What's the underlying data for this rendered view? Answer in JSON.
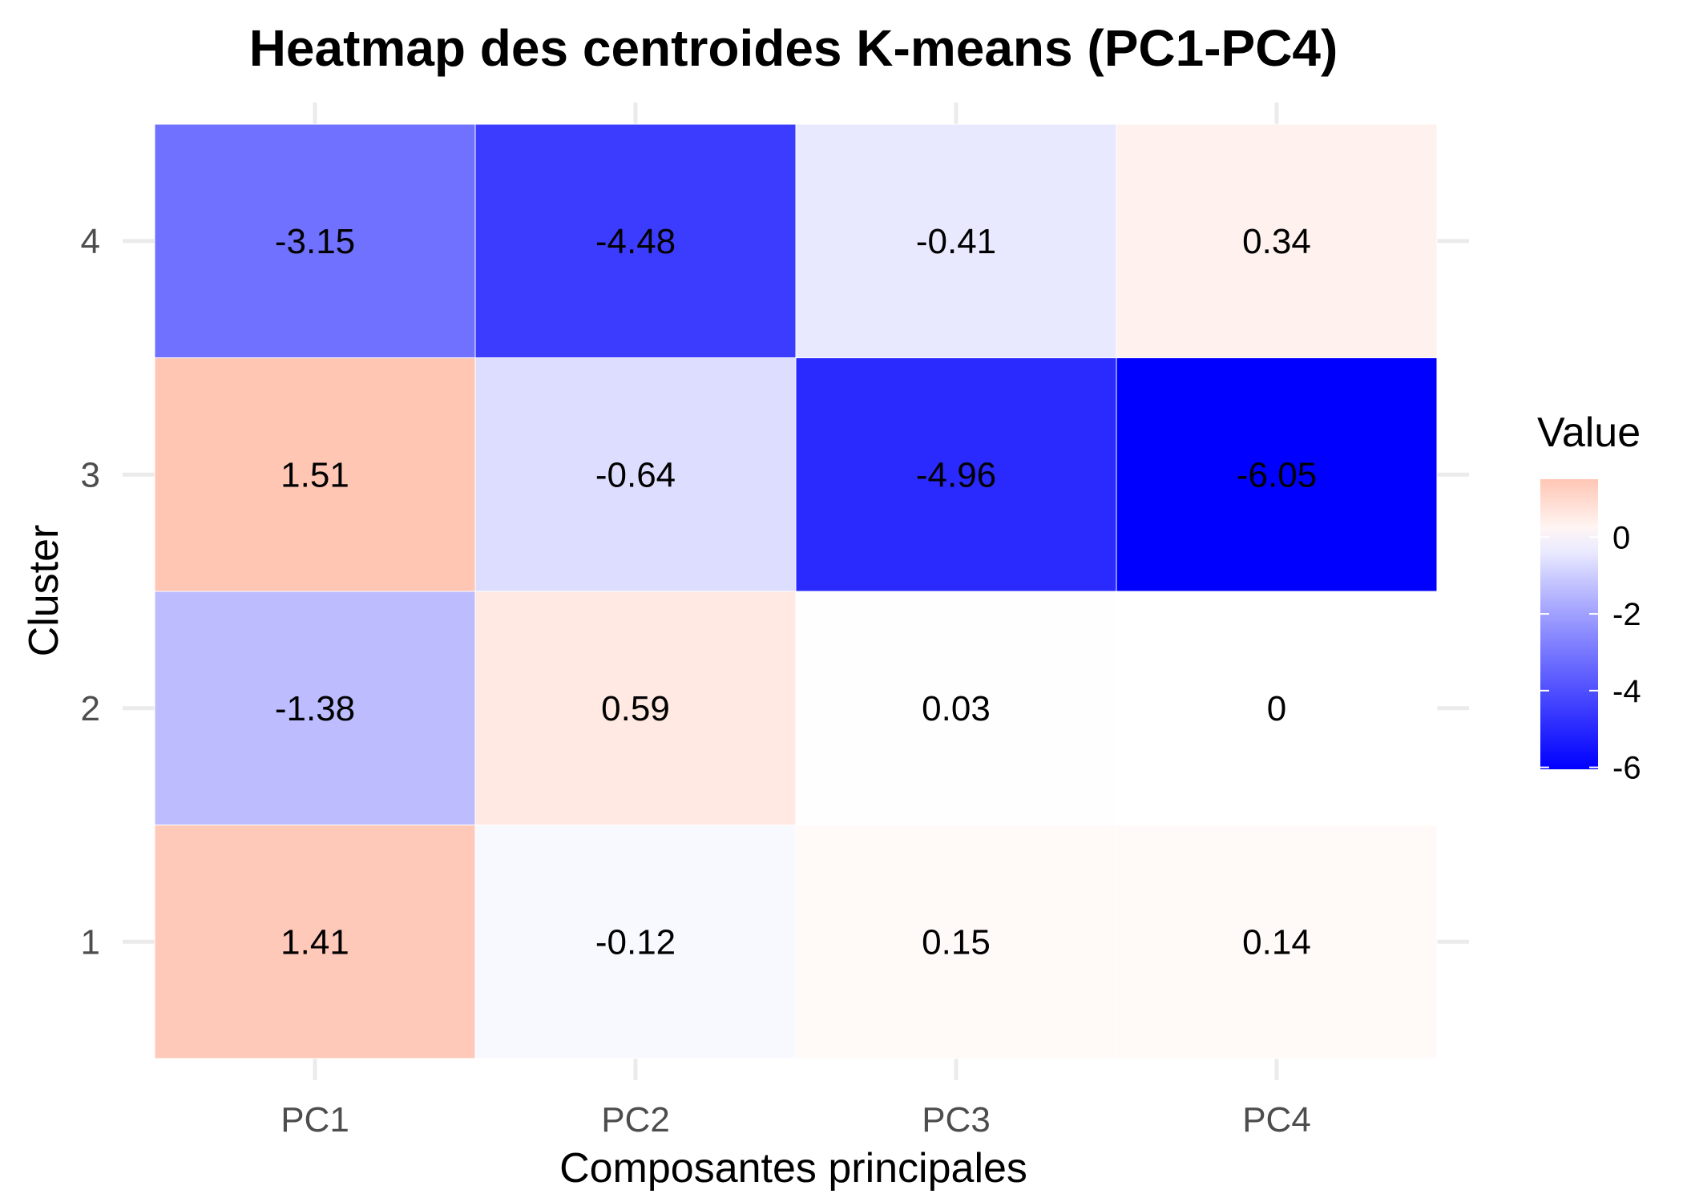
{
  "chart_data": {
    "type": "heatmap",
    "title": "Heatmap des centroides K-means (PC1-PC4)",
    "xlabel": "Composantes principales",
    "ylabel": "Cluster",
    "x_categories": [
      "PC1",
      "PC2",
      "PC3",
      "PC4"
    ],
    "y_categories": [
      "1",
      "2",
      "3",
      "4"
    ],
    "values": [
      [
        1.41,
        -0.12,
        0.15,
        0.14
      ],
      [
        -1.38,
        0.59,
        0.03,
        0
      ],
      [
        1.51,
        -0.64,
        -4.96,
        -6.05
      ],
      [
        -3.15,
        -4.48,
        -0.41,
        0.34
      ]
    ],
    "value_labels": [
      [
        "1.41",
        "-0.12",
        "0.15",
        "0.14"
      ],
      [
        "-1.38",
        "0.59",
        "0.03",
        "0"
      ],
      [
        "1.51",
        "-0.64",
        "-4.96",
        "-6.05"
      ],
      [
        "-3.15",
        "-4.48",
        "-0.41",
        "0.34"
      ]
    ],
    "color_scale": {
      "low_color": "#0000ff",
      "mid_color": "#ffffff",
      "high_color": "#ff8c69",
      "midpoint": 0,
      "low_limit": -6.05,
      "high_limit": 1.51
    },
    "legend": {
      "title": "Value",
      "placement": "right",
      "ticks": [
        0,
        -2,
        -4,
        -6
      ],
      "tick_labels": [
        "0",
        "-2",
        "-4",
        "-6"
      ]
    },
    "grid": true
  }
}
